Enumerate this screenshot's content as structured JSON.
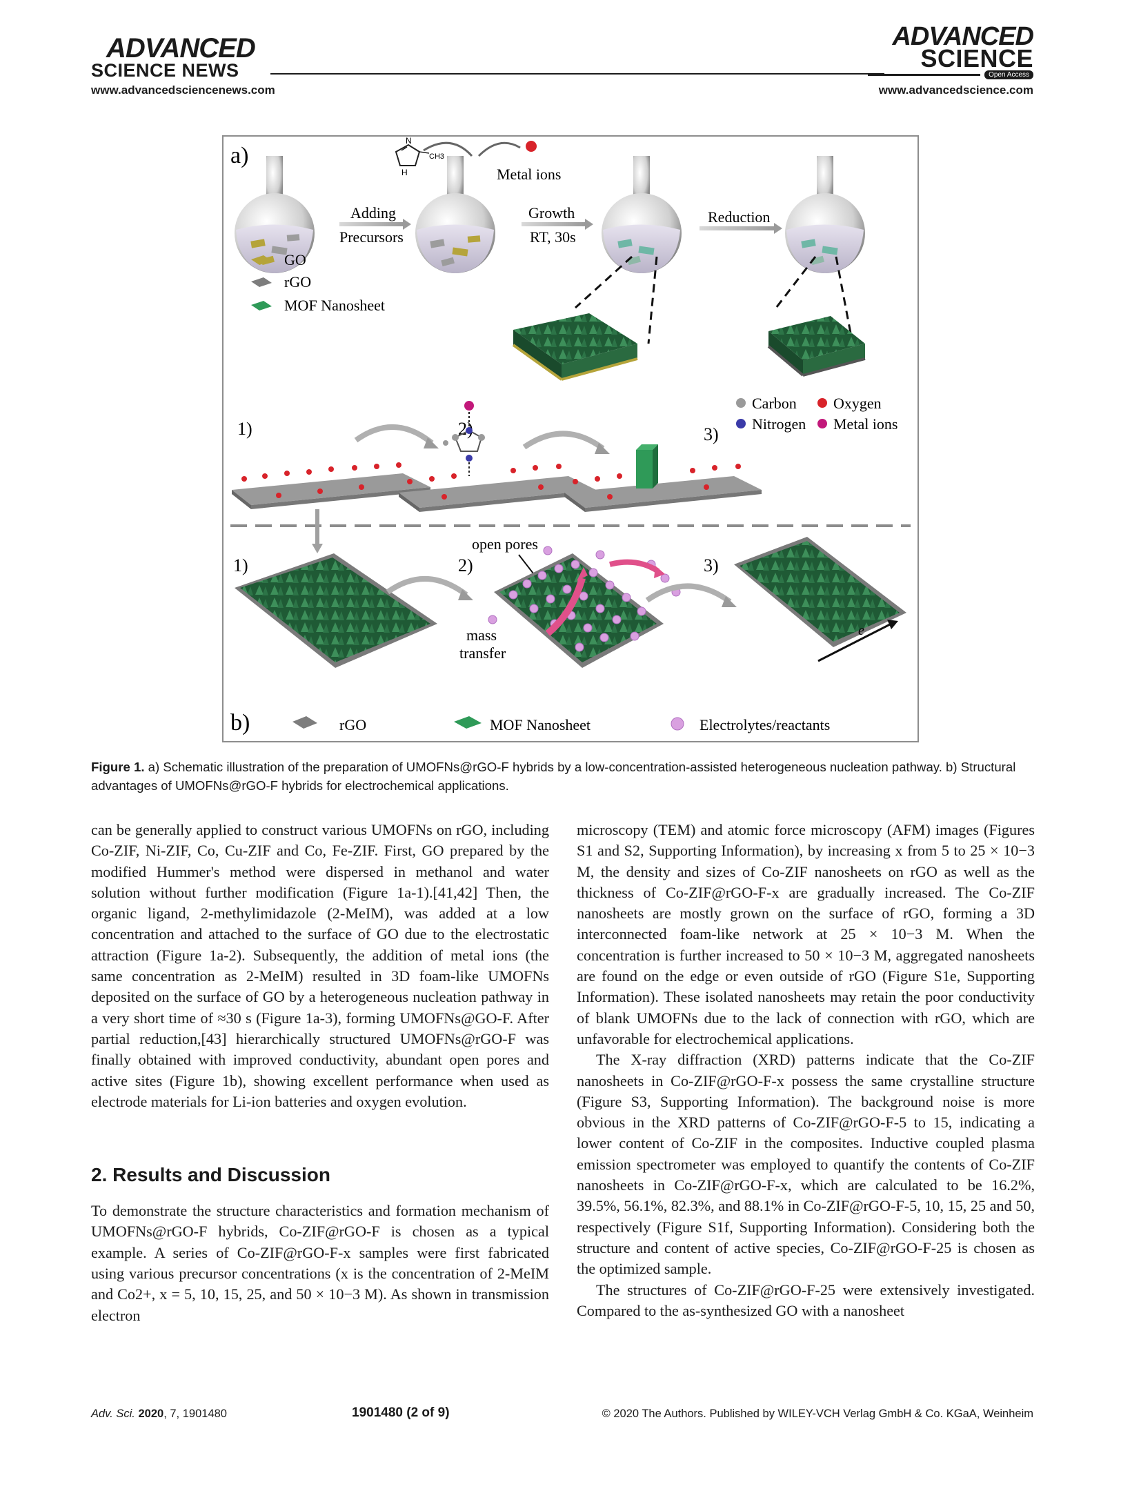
{
  "header": {
    "left_brand_line1": "ADVANCED",
    "left_brand_line2": "SCIENCE NEWS",
    "left_url": "www.advancedsciencenews.com",
    "right_brand_line1": "ADVANCED",
    "right_brand_line2": "SCIENCE",
    "open_access": "Open Access",
    "right_url": "www.advancedscience.com"
  },
  "figure": {
    "panel_a": "a)",
    "panel_b": "b)",
    "metal_ions": "Metal ions",
    "ch3": "CH3",
    "n_label": "N",
    "nh_label": "H",
    "step_adding_1": "Adding",
    "step_adding_2": "Precursors",
    "step_growth_1": "Growth",
    "step_growth_2": "RT, 30s",
    "step_reduction": "Reduction",
    "legend_go": "GO",
    "legend_rgo": "rGO",
    "legend_mof": "MOF Nanosheet",
    "atom_carbon": "Carbon",
    "atom_oxygen": "Oxygen",
    "atom_nitrogen": "Nitrogen",
    "atom_metal": "Metal ions",
    "stage1": "1)",
    "stage2": "2)",
    "stage3": "3)",
    "open_pores": "open pores",
    "mass_transfer_1": "mass",
    "mass_transfer_2": "transfer",
    "electron": "e",
    "bottom_rgo": "rGO",
    "bottom_mof": "MOF Nanosheet",
    "bottom_electrolytes": "Electrolytes/reactants"
  },
  "caption": {
    "label": "Figure 1.",
    "text": " a) Schematic illustration of the preparation of UMOFNs@rGO-F hybrids by a low-concentration-assisted heterogeneous nucleation pathway. b) Structural advantages of UMOFNs@rGO-F hybrids for electrochemical applications."
  },
  "left_column": {
    "p1": "can be generally applied to construct various UMOFNs on rGO, including Co-ZIF, Ni-ZIF, Co, Cu-ZIF and Co, Fe-ZIF. First, GO prepared by the modified Hummer's method were dispersed in methanol and water solution without further modification (Figure 1a-1).[41,42] Then, the organic ligand, 2-methylimidazole (2-MeIM), was added at a low concentration and attached to the surface of GO due to the electrostatic attraction (Figure 1a-2). Subsequently, the addition of metal ions (the same concentration as 2-MeIM) resulted in 3D foam-like UMOFNs deposited on the surface of GO by a heterogeneous nucleation pathway in a very short time of ≈30 s (Figure 1a-3), forming UMOFNs@GO-F. After partial reduction,[43] hierarchically structured UMOFNs@rGO-F was finally obtained with improved conductivity, abundant open pores and active sites (Figure 1b), showing excellent performance when used as electrode materials for Li-ion batteries and oxygen evolution.",
    "section_title": "2. Results and Discussion",
    "p2": "To demonstrate the structure characteristics and formation mechanism of UMOFNs@rGO-F hybrids, Co-ZIF@rGO-F is chosen as a typical example. A series of Co-ZIF@rGO-F-x samples were first fabricated using various precursor concentrations (x is the concentration of 2-MeIM and Co2+, x = 5, 10, 15, 25, and 50 × 10−3 M). As shown in transmission electron"
  },
  "right_column": {
    "p1": "microscopy (TEM) and atomic force microscopy (AFM) images (Figures S1 and S2, Supporting Information), by increasing x from 5 to 25 × 10−3 M, the density and sizes of Co-ZIF nanosheets on rGO as well as the thickness of Co-ZIF@rGO-F-x are gradually increased. The Co-ZIF nanosheets are mostly grown on the surface of rGO, forming a 3D interconnected foam-like network at 25 × 10−3 M. When the concentration is further increased to 50 × 10−3 M, aggregated nanosheets are found on the edge or even outside of rGO (Figure S1e, Supporting Information). These isolated nanosheets may retain the poor conductivity of blank UMOFNs due to the lack of connection with rGO, which are unfavorable for electrochemical applications.",
    "p2": "The X-ray diffraction (XRD) patterns indicate that the Co-ZIF nanosheets in Co-ZIF@rGO-F-x possess the same crystalline structure (Figure S3, Supporting Information). The background noise is more obvious in the XRD patterns of Co-ZIF@rGO-F-5 to 15, indicating a lower content of Co-ZIF in the composites. Inductive coupled plasma emission spectrometer was employed to quantify the contents of Co-ZIF nanosheets in Co-ZIF@rGO-F-x, which are calculated to be 16.2%, 39.5%, 56.1%, 82.3%, and 88.1% in Co-ZIF@rGO-F-5, 10, 15, 25 and 50, respectively (Figure S1f, Supporting Information). Considering both the structure and content of active species, Co-ZIF@rGO-F-25 is chosen as the optimized sample.",
    "p3": "The structures of Co-ZIF@rGO-F-25 were extensively investigated. Compared to the as-synthesized GO with a nanosheet"
  },
  "footer": {
    "journal": "Adv. Sci.",
    "year": "2020",
    "vol_article": ", 7, 1901480",
    "page": "1901480  (2 of 9)",
    "copyright": "© 2020 The Authors. Published by WILEY-VCH Verlag GmbH & Co. KGaA, Weinheim"
  },
  "colors": {
    "go_sheet": "#b5a43a",
    "rgo_sheet": "#7d7d7d",
    "mof_green": "#2f7a4a",
    "carbon": "#9a9a9a",
    "oxygen": "#d8232a",
    "nitrogen": "#3a3aa8",
    "metal": "#c2187a",
    "electrolyte": "#d9a0e0"
  }
}
